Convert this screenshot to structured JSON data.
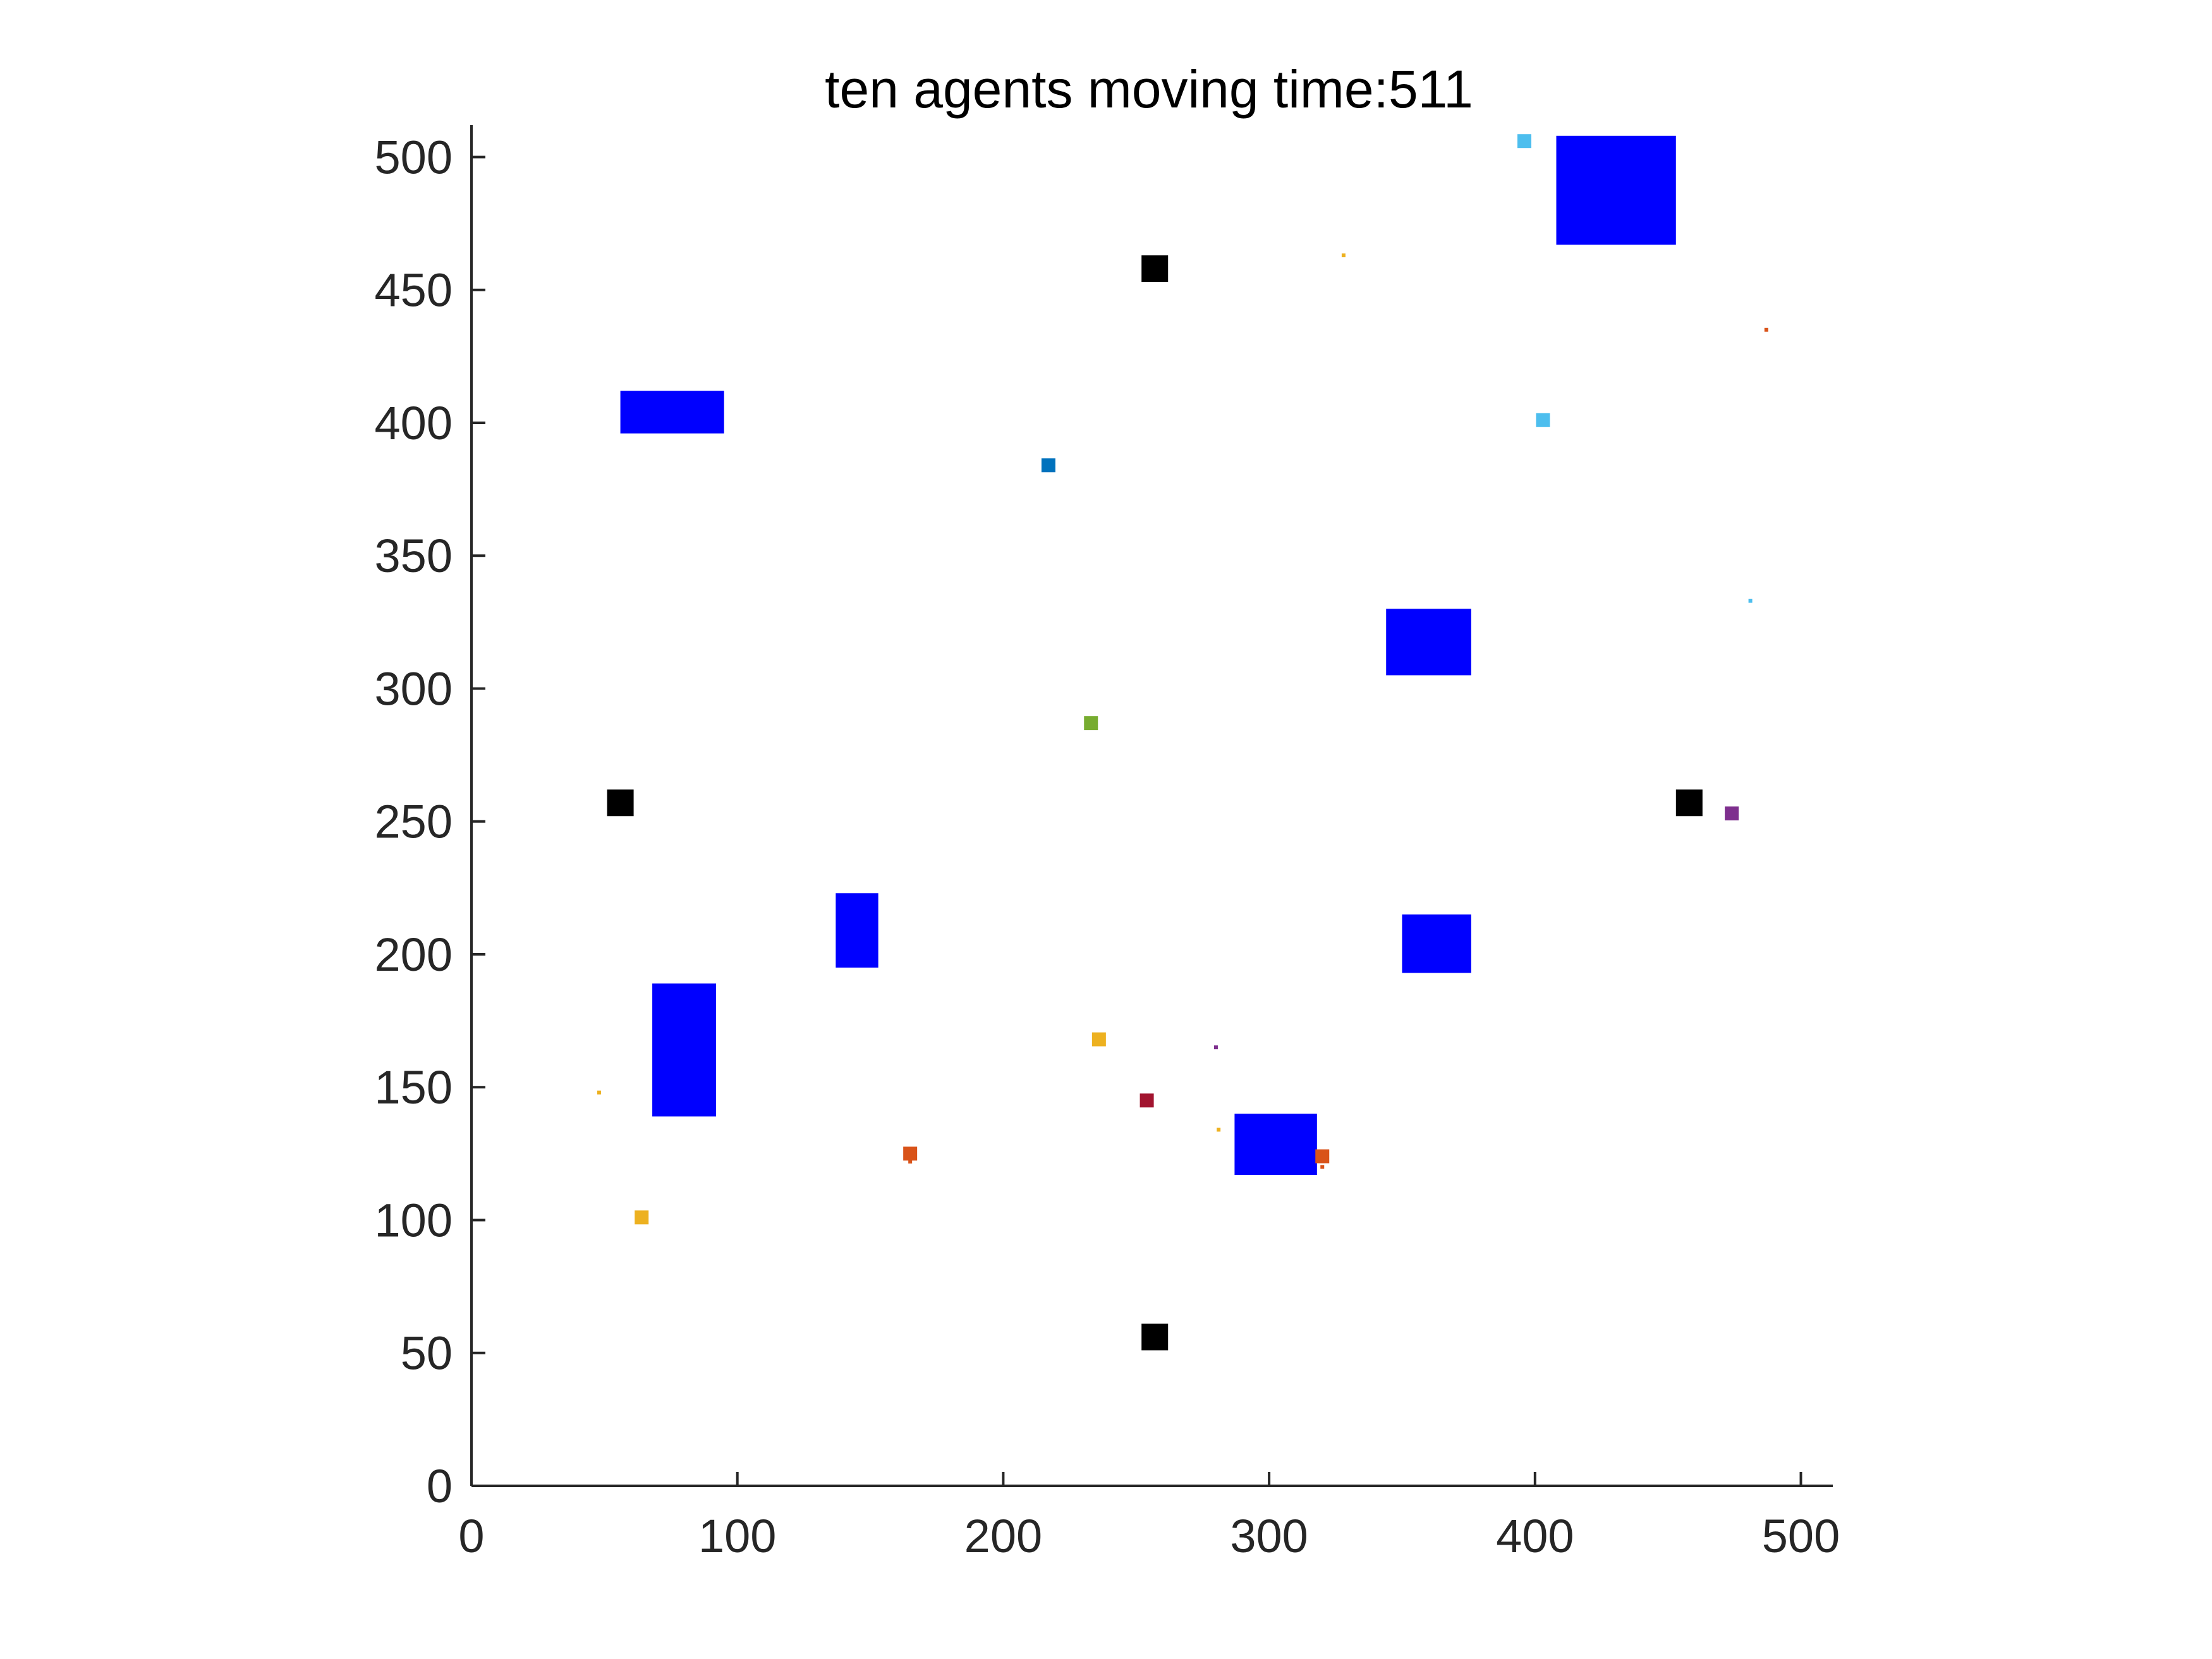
{
  "chart_data": {
    "type": "scatter",
    "title": "ten agents moving time:511",
    "xlabel": "",
    "ylabel": "",
    "xlim": [
      0,
      512
    ],
    "ylim": [
      0,
      512
    ],
    "xticks": [
      0,
      100,
      200,
      300,
      400,
      500
    ],
    "yticks": [
      0,
      50,
      100,
      150,
      200,
      250,
      300,
      350,
      400,
      450,
      500
    ],
    "xtick_labels": [
      "0",
      "100",
      "200",
      "300",
      "400",
      "500"
    ],
    "ytick_labels": [
      "0",
      "50",
      "100",
      "150",
      "200",
      "250",
      "300",
      "350",
      "400",
      "450",
      "500"
    ],
    "grid": false,
    "box": "off",
    "obstacles": {
      "color": "#0000ff",
      "rects": [
        {
          "x0": 408,
          "x1": 453,
          "y0": 467,
          "y1": 508
        },
        {
          "x0": 56,
          "x1": 95,
          "y0": 396,
          "y1": 412
        },
        {
          "x0": 344,
          "x1": 376,
          "y0": 305,
          "y1": 330
        },
        {
          "x0": 137,
          "x1": 153,
          "y0": 195,
          "y1": 223
        },
        {
          "x0": 350,
          "x1": 376,
          "y0": 193,
          "y1": 215
        },
        {
          "x0": 68,
          "x1": 92,
          "y0": 139,
          "y1": 189
        },
        {
          "x0": 287,
          "x1": 318,
          "y0": 117,
          "y1": 140
        }
      ]
    },
    "stations": {
      "color": "#000000",
      "points": [
        {
          "x": 257,
          "y": 458
        },
        {
          "x": 56,
          "y": 257
        },
        {
          "x": 458,
          "y": 257
        },
        {
          "x": 257,
          "y": 56
        }
      ]
    },
    "agents": [
      {
        "x": 396,
        "y": 506,
        "color": "#4dbeee"
      },
      {
        "x": 403,
        "y": 401,
        "color": "#4dbeee"
      },
      {
        "x": 217,
        "y": 384,
        "color": "#0072bd"
      },
      {
        "x": 233,
        "y": 287,
        "color": "#77ac30"
      },
      {
        "x": 474,
        "y": 253,
        "color": "#7e2f8e"
      },
      {
        "x": 236,
        "y": 168,
        "color": "#edb120"
      },
      {
        "x": 254,
        "y": 145,
        "color": "#a2142f"
      },
      {
        "x": 165,
        "y": 125,
        "color": "#d95319"
      },
      {
        "x": 320,
        "y": 124,
        "color": "#d95319"
      },
      {
        "x": 64,
        "y": 101,
        "color": "#edb120"
      }
    ],
    "trail_dots": [
      {
        "x": 328,
        "y": 463,
        "color": "#edb120"
      },
      {
        "x": 487,
        "y": 435,
        "color": "#d95319"
      },
      {
        "x": 481,
        "y": 333,
        "color": "#4dbeee"
      },
      {
        "x": 280,
        "y": 165,
        "color": "#7e2f8e"
      },
      {
        "x": 48,
        "y": 148,
        "color": "#edb120"
      },
      {
        "x": 281,
        "y": 134,
        "color": "#edb120"
      },
      {
        "x": 165,
        "y": 122,
        "color": "#d95319"
      },
      {
        "x": 320,
        "y": 120,
        "color": "#d95319"
      }
    ]
  }
}
